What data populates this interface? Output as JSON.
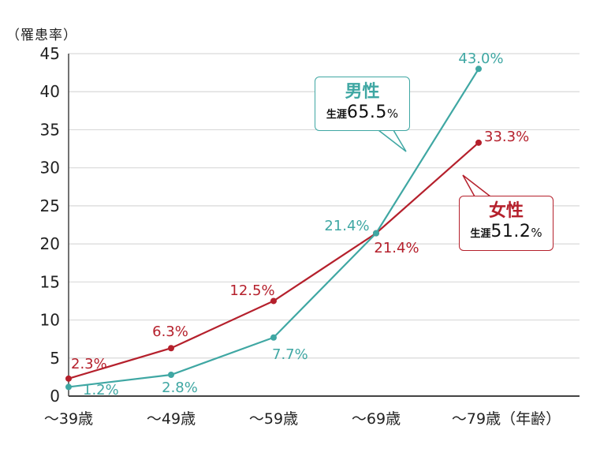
{
  "chart_data": {
    "type": "line",
    "title": "",
    "ylabel": "（罹患率）",
    "xlabel": "（年齢）",
    "categories": [
      "～39歳",
      "～49歳",
      "～59歳",
      "～69歳",
      "～79歳"
    ],
    "ylim": [
      0,
      45
    ],
    "yticks": [
      0,
      5,
      10,
      15,
      20,
      25,
      30,
      35,
      40,
      45
    ],
    "grid": true,
    "series": [
      {
        "name": "男性",
        "color": "#3fa7a3",
        "values": [
          1.2,
          2.8,
          7.7,
          21.4,
          43.0
        ],
        "labels": [
          "1.2%",
          "2.8%",
          "7.7%",
          "21.4%",
          "43.0%"
        ],
        "lifetime_label": "生涯",
        "lifetime_value": "65.5",
        "lifetime_unit": "%"
      },
      {
        "name": "女性",
        "color": "#b5202c",
        "values": [
          2.3,
          6.3,
          12.5,
          21.4,
          33.3
        ],
        "labels": [
          "2.3%",
          "6.3%",
          "12.5%",
          "21.4%",
          "33.3%"
        ],
        "lifetime_label": "生涯",
        "lifetime_value": "51.2",
        "lifetime_unit": "%"
      }
    ]
  },
  "axis": {
    "y_unit": "（罹患率）",
    "x_last_suffix": "（年齢）"
  },
  "callouts": {
    "male": {
      "title": "男性",
      "life_label": "生涯",
      "value": "65.5",
      "unit": "%"
    },
    "female": {
      "title": "女性",
      "life_label": "生涯",
      "value": "51.2",
      "unit": "%"
    }
  },
  "colors": {
    "male": "#3fa7a3",
    "female": "#b5202c",
    "grid": "#d9d9d9",
    "axis": "#444444"
  }
}
